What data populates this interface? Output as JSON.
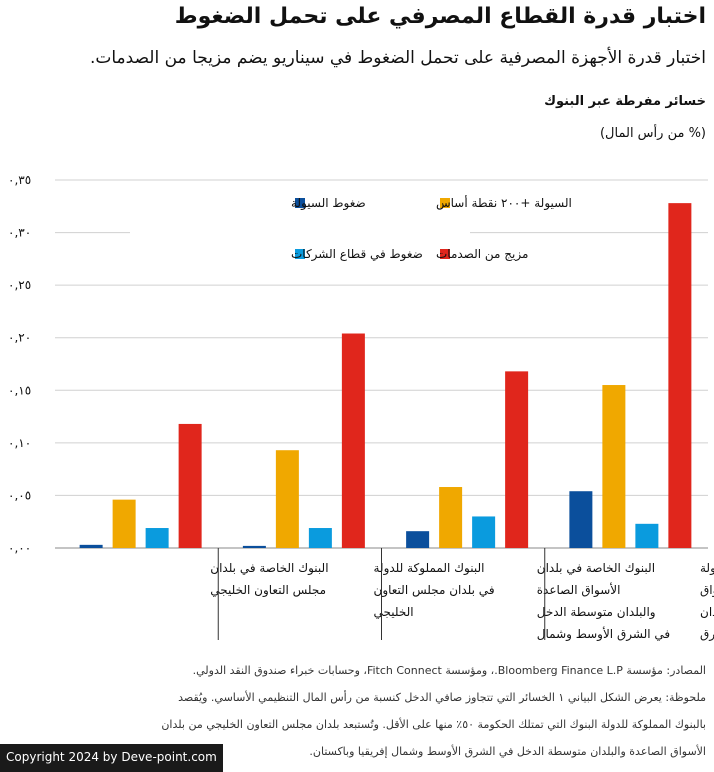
{
  "header": {
    "title": "اختبار قدرة القطاع المصرفي على تحمل الضغوط",
    "subtitle": "اختبار قدرة الأجهزة المصرفية على تحمل الضغوط في سيناريو يضم مزيجا من الصدمات."
  },
  "chart_data": {
    "type": "bar",
    "ylabel": "خسائر مفرطة عبر البنوك",
    "yunit": "(% من رأس المال)",
    "ylim": [
      0,
      0.35
    ],
    "yticks": [
      "٠,٠٠",
      "٠,٠٥",
      "٠,١٠",
      "٠,١٥",
      "٠,٢٠",
      "٠,٢٥",
      "٠,٣٠",
      "٠,٣٥"
    ],
    "grid": true,
    "legend_position": "top",
    "categories": [
      "البنوك الخاصة في بلدان مجلس التعاون الخليجي",
      "البنوك المملوكة للدولة في بلدان مجلس التعاون الخليجي",
      "البنوك الخاصة في بلدان الأسواق الصاعدة والبلدان متوسطة الدخل في الشرق الأوسط وشمال إفريقيا وباكستان",
      "البنوك المملوكة للدولة في بلدان الأسواق الصاعدة والبلدان متوسطة الدخل في الشرق الأوسط وشمال إفريقيا وباكستان"
    ],
    "series": [
      {
        "name": "ضغوط السيولة",
        "color": "#0b4f9c",
        "values": [
          0.003,
          0.002,
          0.016,
          0.054
        ]
      },
      {
        "name": "السيولة +٢٠٠ نقطة أساس",
        "color": "#f0a800",
        "values": [
          0.046,
          0.093,
          0.058,
          0.155
        ]
      },
      {
        "name": "ضغوط في قطاع الشركات",
        "color": "#0a9bde",
        "values": [
          0.019,
          0.019,
          0.03,
          0.023
        ]
      },
      {
        "name": "مزيج من الصدمات",
        "color": "#e0261c",
        "values": [
          0.118,
          0.204,
          0.168,
          0.328
        ]
      }
    ]
  },
  "notes": {
    "sources": "المصادر: مؤسسة Bloomberg Finance L.P.، ومؤسسة Fitch Connect، وحسابات خبراء صندوق النقد الدولي.",
    "note": "ملحوظة: يعرض الشكل البياني ١ الخسائر التي تتجاوز صافي الدخل كنسبة من رأس المال التنظيمي الأساسي. ويُقصد",
    "note2": "بالبنوك المملوكة للدولة البنوك التي تمتلك الحكومة ٥٠٪ منها على الأقل. وتُستبعد بلدان مجلس التعاون الخليجي من بلدان",
    "note3": "الأسواق الصاعدة والبلدان متوسطة الدخل في الشرق الأوسط وشمال إفريقيا وباكستان."
  },
  "footer": {
    "copyright": "Copyright 2024 by Deve-point.com"
  }
}
